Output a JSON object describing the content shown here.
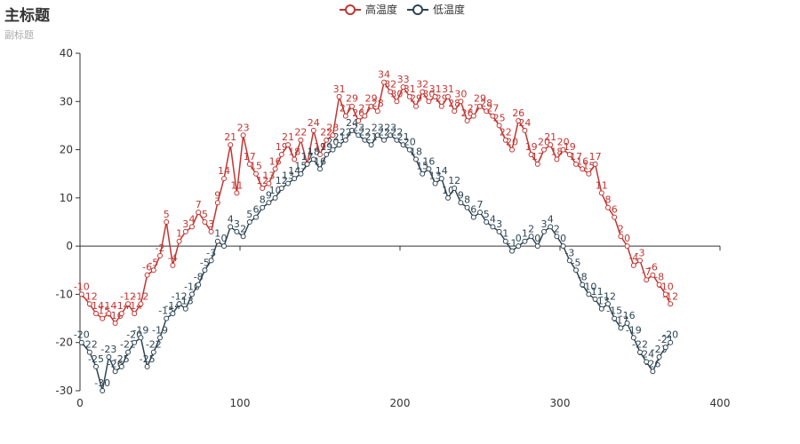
{
  "chart_data": {
    "type": "line",
    "title": "主标题",
    "subtitle": "副标题",
    "xlabel": "",
    "ylabel": "",
    "xlim": [
      0,
      400
    ],
    "ylim": [
      -30,
      40
    ],
    "xticks": [
      0,
      100,
      200,
      300,
      400
    ],
    "yticks": [
      -30,
      -20,
      -10,
      0,
      10,
      20,
      30,
      40
    ],
    "legend_position": "top-center",
    "grid": false,
    "series": [
      {
        "name": "高温度",
        "color": "#c23531",
        "x": [
          1,
          6,
          10,
          14,
          18,
          22,
          26,
          30,
          34,
          38,
          42,
          46,
          50,
          54,
          58,
          62,
          66,
          70,
          74,
          78,
          82,
          86,
          90,
          94,
          98,
          102,
          106,
          110,
          114,
          118,
          122,
          126,
          130,
          134,
          138,
          142,
          146,
          150,
          154,
          158,
          162,
          166,
          170,
          174,
          178,
          182,
          186,
          190,
          194,
          198,
          202,
          206,
          210,
          214,
          218,
          222,
          226,
          230,
          234,
          238,
          242,
          246,
          250,
          254,
          258,
          262,
          266,
          270,
          274,
          278,
          282,
          286,
          290,
          294,
          298,
          302,
          306,
          310,
          314,
          318,
          322,
          326,
          330,
          334,
          338,
          342,
          346,
          350,
          354,
          358,
          362,
          366,
          369
        ],
        "values": [
          -10,
          -12,
          -14,
          -15,
          -14,
          -16,
          -14,
          -12,
          -14,
          -12,
          -6,
          -5,
          -2,
          5,
          -4,
          1,
          3,
          4,
          7,
          5,
          3,
          9,
          14,
          21,
          11,
          23,
          17,
          15,
          12,
          13,
          16,
          19,
          21,
          18,
          22,
          17,
          24,
          19,
          22,
          23,
          31,
          27,
          29,
          26,
          27,
          29,
          28,
          34,
          32,
          30,
          33,
          31,
          29,
          32,
          30,
          31,
          29,
          31,
          28,
          30,
          26,
          27,
          29,
          28,
          27,
          25,
          22,
          20,
          26,
          24,
          19,
          17,
          20,
          21,
          18,
          20,
          19,
          17,
          16,
          15,
          17,
          11,
          8,
          6,
          2,
          0,
          -4,
          -3,
          -7,
          -6,
          -8,
          -10,
          -12
        ],
        "point_labels_shown": true
      },
      {
        "name": "低温度",
        "color": "#2f4554",
        "x": [
          1,
          6,
          10,
          14,
          18,
          22,
          26,
          30,
          34,
          38,
          42,
          46,
          50,
          54,
          58,
          62,
          66,
          70,
          74,
          78,
          82,
          86,
          90,
          94,
          98,
          102,
          106,
          110,
          114,
          118,
          122,
          126,
          130,
          134,
          138,
          142,
          146,
          150,
          154,
          158,
          162,
          166,
          170,
          174,
          178,
          182,
          186,
          190,
          194,
          198,
          202,
          206,
          210,
          214,
          218,
          222,
          226,
          230,
          234,
          238,
          242,
          246,
          250,
          254,
          258,
          262,
          266,
          270,
          274,
          278,
          282,
          286,
          290,
          294,
          298,
          302,
          306,
          310,
          314,
          318,
          322,
          326,
          330,
          334,
          338,
          342,
          346,
          350,
          354,
          358,
          362,
          366,
          369
        ],
        "values": [
          -20,
          -22,
          -25,
          -30,
          -23,
          -26,
          -25,
          -22,
          -20,
          -19,
          -25,
          -22,
          -19,
          -15,
          -14,
          -12,
          -13,
          -10,
          -8,
          -5,
          -3,
          1,
          0,
          4,
          3,
          2,
          5,
          6,
          8,
          9,
          10,
          12,
          13,
          14,
          15,
          17,
          18,
          16,
          19,
          20,
          21,
          22,
          24,
          23,
          22,
          21,
          23,
          22,
          23,
          22,
          21,
          20,
          18,
          15,
          16,
          13,
          14,
          10,
          12,
          9,
          8,
          6,
          7,
          5,
          4,
          3,
          1,
          -1,
          0,
          1,
          2,
          0,
          3,
          4,
          2,
          0,
          -3,
          -5,
          -8,
          -10,
          -11,
          -13,
          -12,
          -15,
          -17,
          -16,
          -19,
          -22,
          -24,
          -26,
          -23,
          -21,
          -20
        ],
        "point_labels_shown": true
      }
    ]
  }
}
